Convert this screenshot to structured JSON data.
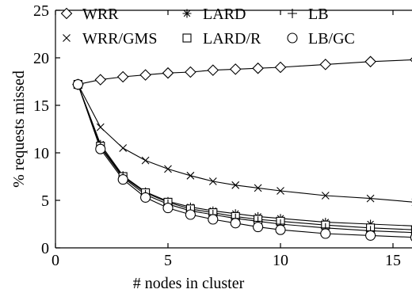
{
  "chart_data": {
    "type": "line",
    "xlabel": "# nodes in cluster",
    "ylabel": "% requests missed",
    "xlim": [
      0,
      16
    ],
    "ylim": [
      0,
      25
    ],
    "xticks": [
      0,
      5,
      10,
      15
    ],
    "yticks": [
      0,
      5,
      10,
      15,
      20,
      25
    ],
    "legend_position": "top",
    "grid": false,
    "series": [
      {
        "name": "WRR",
        "marker": "diamond",
        "x": [
          1,
          2,
          3,
          4,
          5,
          6,
          7,
          8,
          9,
          10,
          12,
          14,
          16
        ],
        "values": [
          17.2,
          17.7,
          18.0,
          18.2,
          18.4,
          18.5,
          18.7,
          18.8,
          18.9,
          19.0,
          19.3,
          19.6,
          19.8
        ]
      },
      {
        "name": "WRR/GMS",
        "marker": "x",
        "x": [
          1,
          2,
          3,
          4,
          5,
          6,
          7,
          8,
          9,
          10,
          12,
          14,
          16
        ],
        "values": [
          17.2,
          12.7,
          10.5,
          9.2,
          8.3,
          7.6,
          7.0,
          6.6,
          6.3,
          6.0,
          5.5,
          5.2,
          4.8
        ]
      },
      {
        "name": "LARD",
        "marker": "asterisk",
        "x": [
          1,
          2,
          3,
          4,
          5,
          6,
          7,
          8,
          9,
          10,
          12,
          14,
          16
        ],
        "values": [
          17.2,
          10.9,
          7.6,
          5.9,
          4.9,
          4.3,
          3.9,
          3.6,
          3.3,
          3.1,
          2.7,
          2.5,
          2.3
        ]
      },
      {
        "name": "LARD/R",
        "marker": "square",
        "x": [
          1,
          2,
          3,
          4,
          5,
          6,
          7,
          8,
          9,
          10,
          12,
          14,
          16
        ],
        "values": [
          17.2,
          10.7,
          7.5,
          5.8,
          4.8,
          4.1,
          3.7,
          3.3,
          3.0,
          2.8,
          2.4,
          2.1,
          1.9
        ]
      },
      {
        "name": "LB",
        "marker": "plus",
        "x": [
          1,
          2,
          3,
          4,
          5,
          6,
          7,
          8,
          9,
          10,
          12,
          14,
          16
        ],
        "values": [
          17.2,
          10.6,
          7.4,
          5.6,
          4.6,
          3.9,
          3.5,
          3.1,
          2.8,
          2.5,
          2.1,
          1.8,
          1.6
        ]
      },
      {
        "name": "LB/GC",
        "marker": "circle",
        "x": [
          1,
          2,
          3,
          4,
          5,
          6,
          7,
          8,
          9,
          10,
          12,
          14,
          16
        ],
        "values": [
          17.2,
          10.4,
          7.2,
          5.3,
          4.2,
          3.5,
          3.0,
          2.6,
          2.2,
          1.9,
          1.5,
          1.3,
          1.1
        ]
      }
    ]
  }
}
